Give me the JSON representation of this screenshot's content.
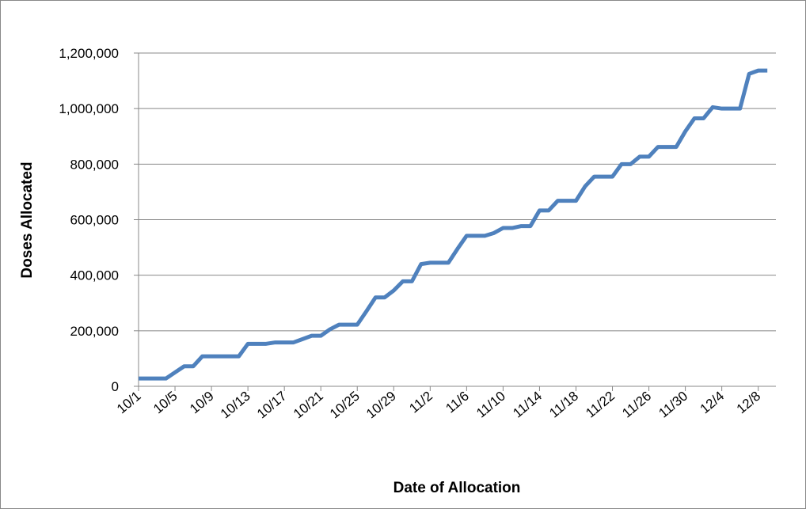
{
  "chart_data": {
    "type": "line",
    "x_label": "Date of Allocation",
    "y_label": "Doses Allocated",
    "categories": [
      "10/1",
      null,
      null,
      null,
      "10/5",
      null,
      null,
      null,
      "10/9",
      null,
      null,
      null,
      "10/13",
      null,
      null,
      null,
      "10/17",
      null,
      null,
      null,
      "10/21",
      null,
      null,
      null,
      "10/25",
      null,
      null,
      null,
      "10/29",
      null,
      null,
      null,
      "11/2",
      null,
      null,
      null,
      "11/6",
      null,
      null,
      null,
      "11/10",
      null,
      null,
      null,
      "11/14",
      null,
      null,
      null,
      "11/18",
      null,
      null,
      null,
      "11/22",
      null,
      null,
      null,
      "11/26",
      null,
      null,
      null,
      "11/30",
      null,
      null,
      null,
      "12/4",
      null,
      null,
      null,
      "12/8",
      null
    ],
    "values": [
      28000,
      28000,
      28000,
      28000,
      50000,
      72000,
      72000,
      108000,
      108000,
      108000,
      108000,
      108000,
      153000,
      153000,
      153000,
      158000,
      158000,
      158000,
      170000,
      182000,
      182000,
      205000,
      222000,
      222000,
      222000,
      270000,
      320000,
      320000,
      345000,
      378000,
      378000,
      440000,
      445000,
      445000,
      445000,
      495000,
      542000,
      542000,
      542000,
      552000,
      570000,
      570000,
      577000,
      577000,
      633000,
      633000,
      668000,
      668000,
      668000,
      720000,
      755000,
      755000,
      755000,
      800000,
      800000,
      827000,
      827000,
      862000,
      862000,
      862000,
      918000,
      965000,
      965000,
      1005000,
      1000000,
      1000000,
      1000000,
      1125000,
      1137000,
      1137000
    ],
    "color": "#4f81bd",
    "ylim": [
      0,
      1200000
    ],
    "yticks": [
      0,
      {
        "value": 200000,
        "label": "200,000"
      },
      {
        "value": 400000,
        "label": "400,000"
      },
      {
        "value": 600000,
        "label": "600,000"
      },
      {
        "value": 800000,
        "label": "800,000"
      },
      {
        "value": 1000000,
        "label": "1,000,000"
      },
      {
        "value": 1200000,
        "label": "1,200,000"
      }
    ],
    "grid": true
  }
}
